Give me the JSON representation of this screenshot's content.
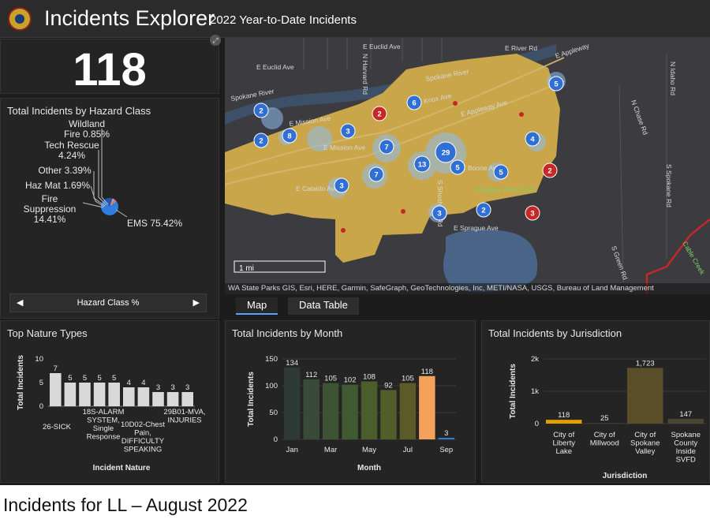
{
  "header": {
    "title": "Incidents Explorer",
    "subtitle": "2022 Year-to-Date Incidents"
  },
  "total_card": {
    "value": "118"
  },
  "hazard_panel": {
    "title": "Total Incidents by Hazard Class",
    "slices": [
      {
        "name": "EMS",
        "label": "EMS 75.42%",
        "value": 75.42,
        "color": "#2f7de0"
      },
      {
        "name": "Fire Suppression",
        "label": "Fire Suppression 14.41%",
        "value": 14.41,
        "color": "#1e56b8"
      },
      {
        "name": "Haz Mat",
        "label": "Haz Mat 1.69%",
        "value": 1.69,
        "color": "#d63a3a"
      },
      {
        "name": "Other",
        "label": "Other 3.39%",
        "value": 3.39,
        "color": "#8fbff0"
      },
      {
        "name": "Tech Rescue",
        "label": "Tech Rescue 4.24%",
        "value": 4.24,
        "color": "#e06b6b"
      },
      {
        "name": "Wildland Fire",
        "label": "Wildland Fire 0.85%",
        "value": 0.85,
        "color": "#f0d24a"
      }
    ],
    "label_lines": {
      "wildland_1": "Wildland",
      "wildland_2": "Fire 0.85%",
      "tech_1": "Tech Rescue",
      "tech_2": "4.24%",
      "other": "Other 3.39%",
      "hazmat": "Haz Mat 1.69%",
      "fire_1": "Fire",
      "fire_2": "Suppression",
      "fire_3": "14.41%",
      "ems": "EMS 75.42%"
    },
    "carousel_label": "Hazard Class %",
    "prev_icon": "◀",
    "next_icon": "▶"
  },
  "map": {
    "roads": [
      "E Euclid Ave",
      "E Euclid Ave",
      "E River Rd",
      "E Appleway",
      "Spokane River",
      "Spokane River",
      "E Knox Ave",
      "E Mission Ave",
      "E Mission Ave",
      "E Sprague Ave",
      "N Idaho Rd",
      "N Chase Rd",
      "S Green Rd",
      "Cable Creek",
      "Meadow Wood Golf",
      "S Shoshone Rd",
      "N Harvard Rd",
      "E Appleway Ave",
      "E Boone Ave",
      "S Spokane Rd",
      "E Cataldo Ave"
    ],
    "clusters": [
      {
        "label": "5",
        "kind": "blue"
      },
      {
        "label": "6",
        "kind": "blue"
      },
      {
        "label": "2",
        "kind": "red"
      },
      {
        "label": "2",
        "kind": "blue"
      },
      {
        "label": "3",
        "kind": "blue"
      },
      {
        "label": "8",
        "kind": "blue"
      },
      {
        "label": "2",
        "kind": "blue"
      },
      {
        "label": "7",
        "kind": "blue"
      },
      {
        "label": "29",
        "kind": "blue"
      },
      {
        "label": "5",
        "kind": "blue"
      },
      {
        "label": "13",
        "kind": "blue"
      },
      {
        "label": "5",
        "kind": "blue"
      },
      {
        "label": "4",
        "kind": "blue"
      },
      {
        "label": "2",
        "kind": "red"
      },
      {
        "label": "7",
        "kind": "blue"
      },
      {
        "label": "3",
        "kind": "blue"
      },
      {
        "label": "2",
        "kind": "blue"
      },
      {
        "label": "3",
        "kind": "red"
      },
      {
        "label": "3",
        "kind": "blue"
      }
    ],
    "scale_label": "1 mi",
    "attribution": "WA State Parks GIS, Esri, HERE, Garmin, SafeGraph, GeoTechnologies, Inc, METI/NASA, USGS, Bureau of Land Management",
    "tabs": [
      "Map",
      "Data Table"
    ],
    "expand_icon": "⤢"
  },
  "colors": {
    "map_area": "#c9a64a",
    "cluster_blue": "#2f6fd6",
    "cluster_red": "#c62828",
    "bar_gray": "#d9d9d9",
    "bar_highlight": "#f4a25b",
    "jurisdiction_gold": "#e0a100"
  },
  "chart_data": [
    {
      "type": "bar",
      "title": "Top Nature Types",
      "ylabel": "Total Incidents",
      "xlabel": "Incident Nature",
      "ylim": [
        0,
        10
      ],
      "yticks": [
        0,
        5,
        10
      ],
      "values": [
        7,
        5,
        5,
        5,
        5,
        4,
        4,
        3,
        3,
        3
      ],
      "category_labels": {
        "c1": "26-SICK",
        "c3_1": "18S-ALARM",
        "c3_2": "SYSTEM,",
        "c3_3": "Single",
        "c3_4": "Response",
        "c6_1": "10D02-Chest",
        "c6_2": "Pain,",
        "c6_3": "DIFFICULTY",
        "c6_4": "SPEAKING",
        "c8_1": "29B01-MVA,",
        "c8_2": "INJURIES"
      }
    },
    {
      "type": "bar",
      "title": "Total Incidents by Month",
      "ylabel": "Total Incidents",
      "xlabel": "Month",
      "ylim": [
        0,
        150
      ],
      "yticks": [
        0,
        50,
        100,
        150
      ],
      "months": [
        "Jan",
        "Feb",
        "Mar",
        "Apr",
        "May",
        "Jun",
        "Jul",
        "Aug",
        "Sep"
      ],
      "values": [
        134,
        112,
        105,
        102,
        108,
        92,
        105,
        118,
        3
      ],
      "value_labels": [
        "134",
        "112",
        "105",
        "102",
        "108",
        "92",
        "105",
        "118",
        "3"
      ],
      "tick_labels": [
        "Jan",
        "Mar",
        "May",
        "Jul",
        "Sep"
      ]
    },
    {
      "type": "bar",
      "title": "Total Incidents by Jurisdiction",
      "ylabel": "Total Incidents",
      "xlabel": "Jurisdiction",
      "ylim": [
        0,
        2000
      ],
      "yticks": [
        "0",
        "1k",
        "2k"
      ],
      "values": [
        118,
        25,
        1723,
        147
      ],
      "value_labels": [
        "118",
        "25",
        "1,723",
        "147"
      ],
      "category_labels": [
        [
          "City of",
          "Liberty",
          "Lake"
        ],
        [
          "City of",
          "Millwood"
        ],
        [
          "City of",
          "Spokane",
          "Valley"
        ],
        [
          "Spokane",
          "County",
          "Inside",
          "SVFD"
        ]
      ]
    }
  ],
  "caption": "Incidents for LL – August 2022"
}
